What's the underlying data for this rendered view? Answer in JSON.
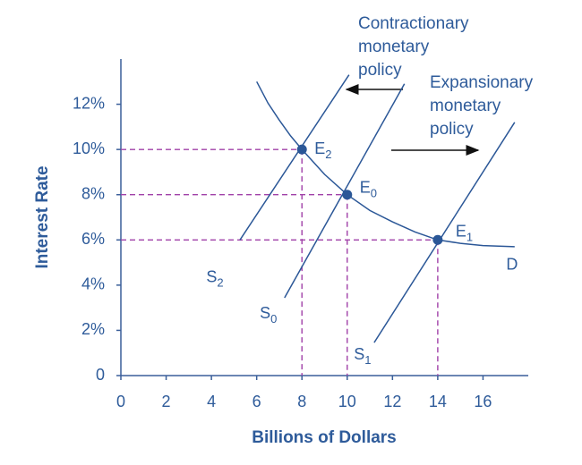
{
  "chart_data": {
    "type": "line",
    "x_label": "Billions of Dollars",
    "y_label": "Interest Rate",
    "xlim": [
      0,
      18
    ],
    "ylim": [
      0,
      14
    ],
    "xticks": [
      0,
      2,
      4,
      6,
      8,
      10,
      12,
      14,
      16
    ],
    "yticks": [
      0,
      {
        "value": 2,
        "label": "2%"
      },
      {
        "value": 4,
        "label": "4%"
      },
      {
        "value": 6,
        "label": "6%"
      },
      {
        "value": 8,
        "label": "8%"
      },
      {
        "value": 10,
        "label": "10%"
      },
      {
        "value": 12,
        "label": "12%"
      }
    ],
    "series": [
      {
        "name": "D",
        "color": "#2b5797",
        "x": [
          6,
          6.5,
          7,
          7.5,
          8,
          9,
          10,
          11,
          12,
          13,
          14,
          15,
          16,
          17.4
        ],
        "y": [
          13,
          12.05,
          11.3,
          10.6,
          10,
          8.9,
          8,
          7.3,
          6.8,
          6.35,
          6,
          5.85,
          5.75,
          5.7
        ]
      },
      {
        "name": "S",
        "subscript": "2",
        "color": "#2b5797",
        "x": [
          5.26,
          10.08
        ],
        "y": [
          6.0,
          13.3
        ]
      },
      {
        "name": "S",
        "subscript": "0",
        "color": "#2b5797",
        "x": [
          7.23,
          12.53
        ],
        "y": [
          3.44,
          12.9
        ]
      },
      {
        "name": "S",
        "subscript": "1",
        "color": "#2b5797",
        "x": [
          11.19,
          17.4
        ],
        "y": [
          1.46,
          11.2
        ]
      }
    ],
    "points": [
      {
        "label": "E",
        "subscript": "2",
        "x": 8,
        "y": 10
      },
      {
        "label": "E",
        "subscript": "0",
        "x": 10,
        "y": 8
      },
      {
        "label": "E",
        "subscript": "1",
        "x": 14,
        "y": 6
      }
    ],
    "point_color": "#2b5797",
    "guide_color": "#a040a8",
    "annotations": [
      {
        "lines": [
          "Contractionary",
          "monetary",
          "policy"
        ]
      },
      {
        "lines": [
          "Expansionary",
          "monetary",
          "policy"
        ]
      }
    ]
  }
}
